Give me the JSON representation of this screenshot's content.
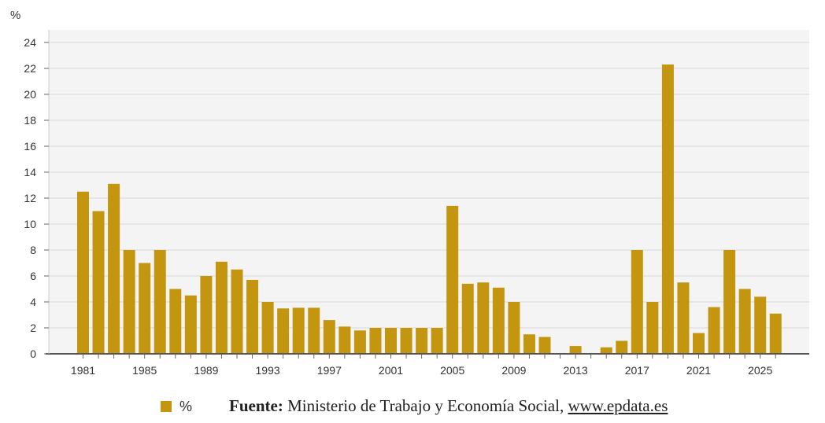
{
  "chart_data": {
    "type": "bar",
    "unit_label": "%",
    "x": [
      1981,
      1982,
      1983,
      1984,
      1985,
      1986,
      1987,
      1988,
      1989,
      1990,
      1991,
      1992,
      1993,
      1994,
      1995,
      1996,
      1997,
      1998,
      1999,
      2000,
      2001,
      2002,
      2003,
      2004,
      2005,
      2006,
      2007,
      2008,
      2009,
      2010,
      2011,
      2012,
      2013,
      2014,
      2015,
      2016,
      2017,
      2018,
      2019,
      2020,
      2021,
      2022,
      2023,
      2024,
      2025,
      2026
    ],
    "series": [
      {
        "name": "%",
        "color": "#c4960f",
        "values": [
          12.5,
          11.0,
          13.1,
          8.0,
          7.0,
          8.0,
          5.0,
          4.5,
          6.0,
          7.1,
          6.5,
          5.7,
          4.0,
          3.5,
          3.55,
          3.55,
          2.6,
          2.1,
          1.8,
          2.0,
          2.0,
          2.0,
          2.0,
          2.0,
          11.4,
          5.4,
          5.5,
          5.1,
          4.0,
          1.5,
          1.3,
          0,
          0.6,
          0,
          0.5,
          1.0,
          8.0,
          4.0,
          22.3,
          5.5,
          1.6,
          3.6,
          8.0,
          5.0,
          4.4,
          3.1
        ]
      }
    ],
    "x_tick_labels": [
      "1981",
      "1985",
      "1989",
      "1993",
      "1997",
      "2001",
      "2005",
      "2009",
      "2013",
      "2017",
      "2021",
      "2025"
    ],
    "y_ticks": [
      0,
      2,
      4,
      6,
      8,
      10,
      12,
      14,
      16,
      18,
      20,
      22,
      24
    ],
    "ylim": [
      0,
      24
    ],
    "grid": true,
    "legend": "bottom-left"
  },
  "source": {
    "prefix": "Fuente:",
    "text": " Ministerio de Trabajo y Economía Social, ",
    "link": "www.epdata.es"
  }
}
